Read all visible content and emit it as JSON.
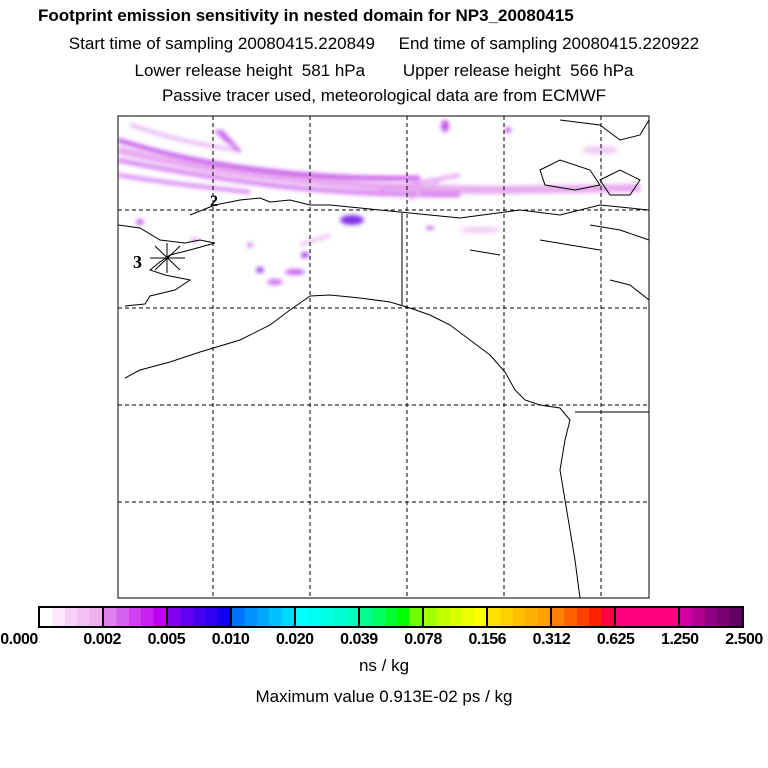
{
  "title": "Footprint emission sensitivity in nested domain for NP3_20080415",
  "line1": "Start time of sampling 20080415.220849     End time of sampling 20080415.220922",
  "line2": "Lower release height  581 hPa        Upper release height  566 hPa",
  "line3": "Passive tracer used, meteorological data are from ECMWF",
  "map": {
    "label_2": "2",
    "label_3": "3",
    "compass_icon": "compass-rose"
  },
  "colorbar": {
    "labels": [
      "0.000",
      "0.002",
      "0.005",
      "0.010",
      "0.020",
      "0.039",
      "0.078",
      "0.156",
      "0.312",
      "0.625",
      "1.250",
      "2.500"
    ],
    "colors": [
      [
        "#ffffff",
        "#fbe6fb",
        "#f7d0f7",
        "#f3c0f3",
        "#efb0ef"
      ],
      [
        "#e080f0",
        "#d860f0",
        "#d040f0",
        "#c820f0",
        "#c000f0"
      ],
      [
        "#8000f0",
        "#6000f0",
        "#4800f0",
        "#3000f0",
        "#1000f0"
      ],
      [
        "#0070ff",
        "#0090ff",
        "#00a8ff",
        "#00c0ff",
        "#00d8ff"
      ],
      [
        "#00ffff",
        "#00fff0",
        "#00ffe0",
        "#00ffd0",
        "#00ffc0"
      ],
      [
        "#00ff90",
        "#00ff60",
        "#00ff30",
        "#00ff00",
        "#70ff00"
      ],
      [
        "#a0ff00",
        "#c0ff00",
        "#d8ff00",
        "#eaff00",
        "#ffff00"
      ],
      [
        "#ffe000",
        "#ffd000",
        "#ffc000",
        "#ffb000",
        "#ffa000"
      ],
      [
        "#ff8000",
        "#ff6000",
        "#ff4000",
        "#ff2000",
        "#ff0040"
      ],
      [
        "#ff0080",
        "#ff0080",
        "#ff0080",
        "#ff0080",
        "#ff0080"
      ],
      [
        "#d000a0",
        "#b00090",
        "#900080",
        "#780070",
        "#600060"
      ]
    ],
    "unit": "ns / kg",
    "max_value": "Maximum value  0.913E-02 ps / kg"
  }
}
